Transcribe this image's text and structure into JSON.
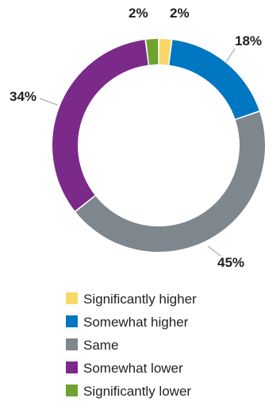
{
  "chart_data": {
    "type": "pie",
    "variant": "donut",
    "title": "",
    "legend_position": "bottom",
    "slices": [
      {
        "label": "Significantly higher",
        "value": 2,
        "value_label": "2%",
        "color": "#f9d869"
      },
      {
        "label": "Somewhat higher",
        "value": 18,
        "value_label": "18%",
        "color": "#0077c0"
      },
      {
        "label": "Same",
        "value": 45,
        "value_label": "45%",
        "color": "#7e868e"
      },
      {
        "label": "Somewhat lower",
        "value": 34,
        "value_label": "34%",
        "color": "#7b2a8a"
      },
      {
        "label": "Significantly lower",
        "value": 2,
        "value_label": "2%",
        "color": "#6fa22f"
      }
    ]
  }
}
